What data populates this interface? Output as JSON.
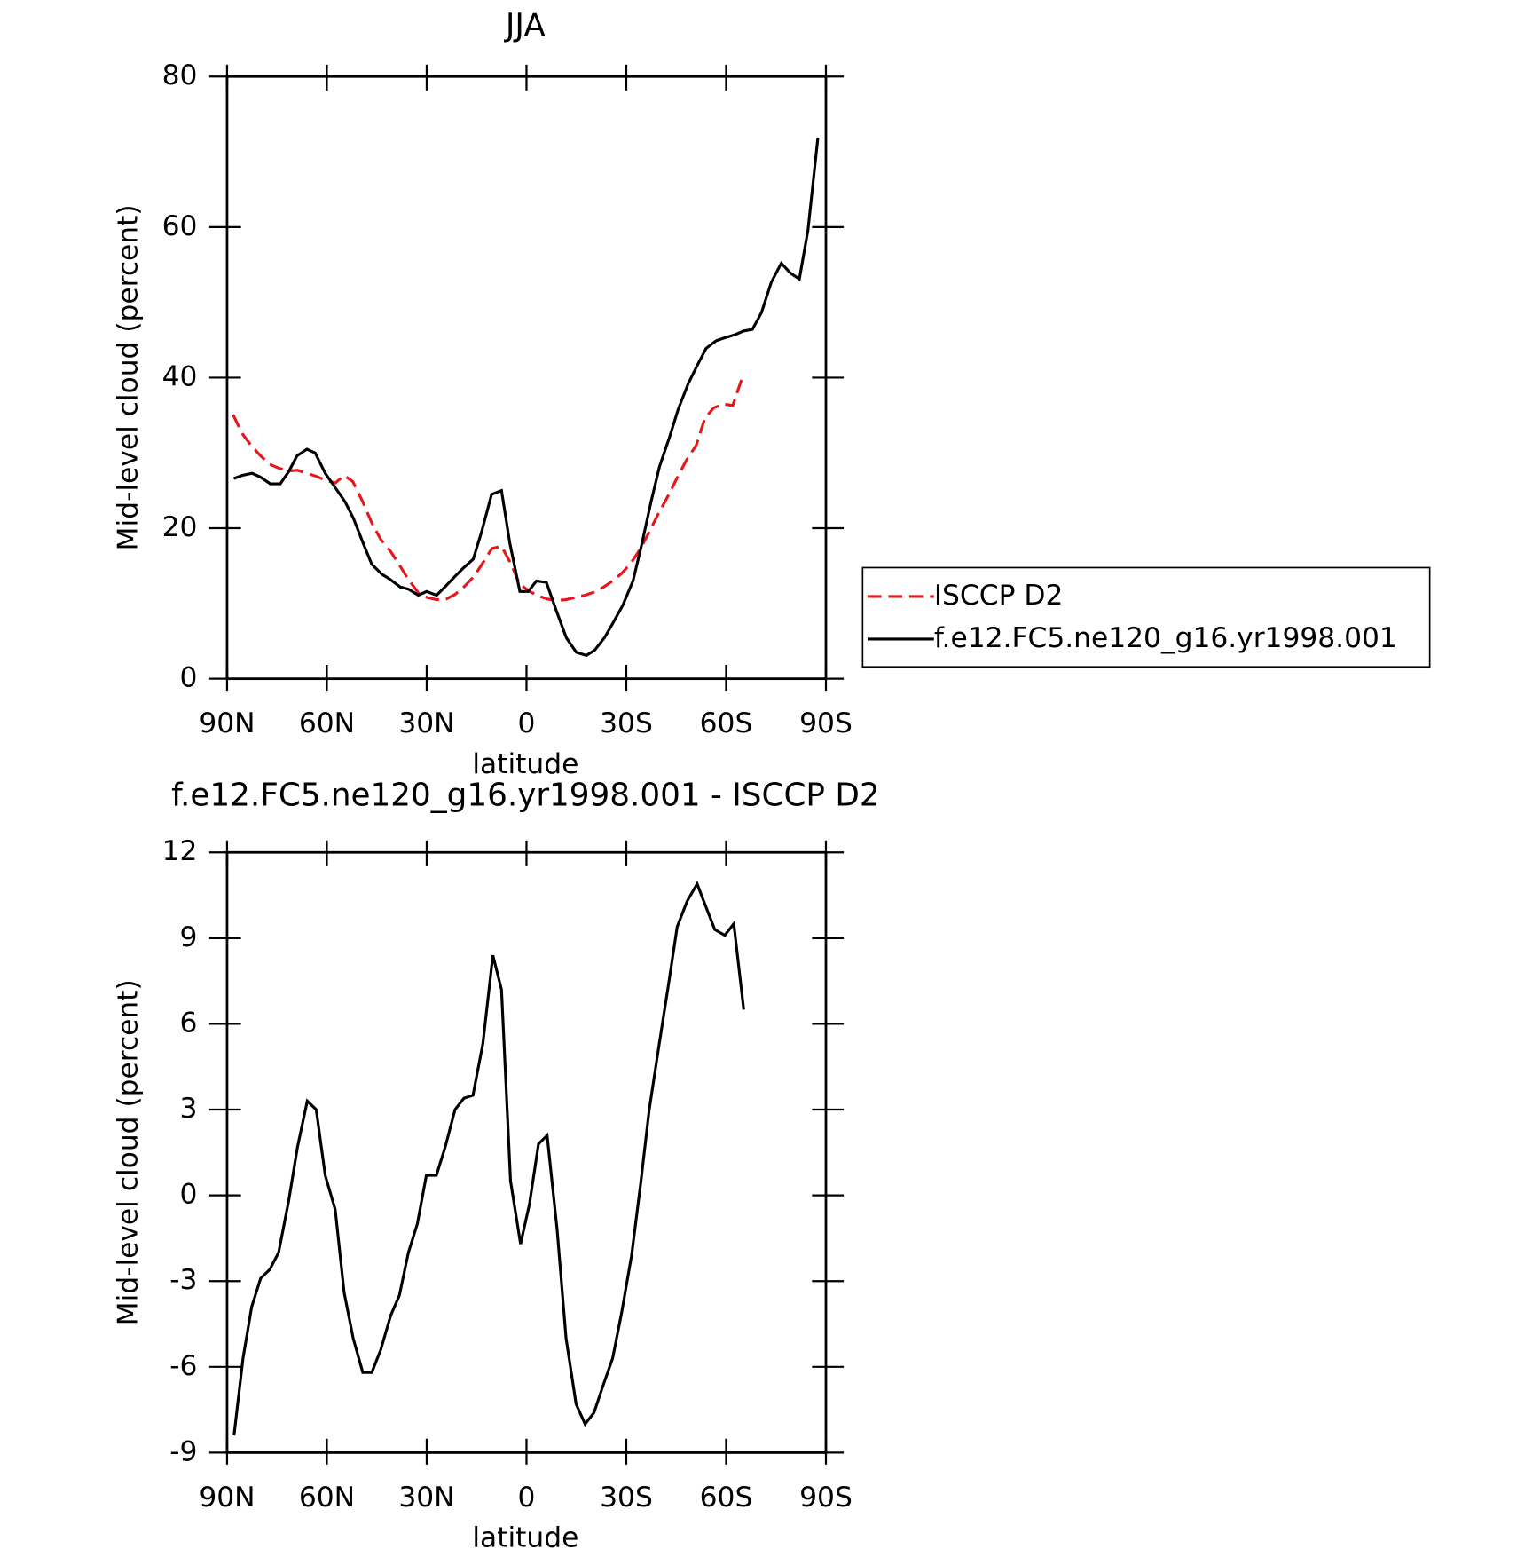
{
  "chart_data": [
    {
      "type": "line",
      "title": "JJA",
      "xlabel": "latitude",
      "ylabel": "Mid-level cloud (percent)",
      "xlim": [
        90,
        -90
      ],
      "xticks": [
        {
          "value": 90,
          "label": "90N"
        },
        {
          "value": 60,
          "label": "60N"
        },
        {
          "value": 30,
          "label": "30N"
        },
        0,
        {
          "value": -30,
          "label": "30S"
        },
        {
          "value": -60,
          "label": "60S"
        },
        {
          "value": -90,
          "label": "90S"
        }
      ],
      "ylim": [
        0,
        80
      ],
      "yticks": [
        0,
        20,
        40,
        60,
        80
      ],
      "legend": "outside right",
      "series": [
        {
          "name": "ISCCP D2",
          "color": "#e8151b",
          "dash": true,
          "x": [
            88.2,
            85.5,
            82.8,
            79.9,
            77.2,
            74.5,
            71.5,
            68.8,
            66,
            63.2,
            60.5,
            57.5,
            54.8,
            52.2,
            49.2,
            46.5,
            43.8,
            40.8,
            38.2,
            35.5,
            32.5,
            29.8,
            27.1,
            24.1,
            21.5,
            18.8,
            15.8,
            13.1,
            10.4,
            7.5,
            4.8,
            2.1,
            -0.9,
            -3.6,
            -6.2,
            -9.2,
            -11.9,
            -14.6,
            -17.6,
            -20.3,
            -22.9,
            -25.9,
            -28.6,
            -31.3,
            -34.3,
            -36.9,
            -39.6,
            -42.6,
            -45.3,
            -48,
            -51,
            -53.6,
            -56.3,
            -59.3,
            -62,
            -65
          ],
          "values": [
            35.1,
            32.6,
            31.0,
            29.6,
            28.5,
            28.0,
            27.6,
            27.7,
            27.3,
            26.9,
            26.4,
            26.0,
            27.0,
            26.2,
            23.5,
            20.7,
            18.5,
            16.9,
            15.1,
            13.2,
            11.4,
            10.8,
            10.5,
            10.6,
            11.2,
            12.2,
            13.6,
            15.4,
            17.3,
            17.6,
            15.4,
            12.6,
            11.6,
            11.0,
            10.6,
            10.4,
            10.5,
            10.8,
            11.1,
            11.5,
            12.1,
            13.0,
            14.0,
            15.3,
            17.3,
            19.5,
            21.9,
            24.3,
            26.7,
            29.0,
            31.0,
            34.6,
            36.0,
            36.5,
            36.3,
            40.2
          ]
        },
        {
          "name": "f.e12.FC5.ne120_g16.yr1998.001",
          "color": "#000000",
          "dash": false,
          "x": [
            88,
            85.5,
            82.5,
            80,
            77,
            74,
            71.5,
            69,
            66,
            63.5,
            60.5,
            57.5,
            54.5,
            52,
            49,
            46.5,
            43.5,
            41,
            38,
            35.5,
            32.5,
            30,
            27,
            24.5,
            21.5,
            19,
            16,
            13.5,
            10.5,
            7.5,
            5,
            2,
            -0.5,
            -3,
            -6,
            -9,
            -12,
            -15,
            -18,
            -20.5,
            -23.5,
            -26,
            -29,
            -32,
            -34.5,
            -37.5,
            -40,
            -43,
            -45.6,
            -48.6,
            -51.3,
            -54,
            -57,
            -59.6,
            -62.6,
            -65.2,
            -67.9,
            -70.6,
            -73.6,
            -76.6,
            -79.3,
            -82,
            -84.6,
            -87.6
          ],
          "values": [
            26.6,
            27.0,
            27.3,
            26.8,
            25.9,
            25.9,
            27.5,
            29.6,
            30.5,
            30.0,
            27.3,
            25.4,
            23.5,
            21.3,
            17.9,
            15.2,
            13.9,
            13.2,
            12.2,
            11.9,
            11.1,
            11.6,
            11.1,
            12.2,
            13.6,
            14.7,
            15.9,
            19.5,
            24.5,
            25.0,
            18.0,
            11.6,
            11.6,
            13.0,
            12.8,
            9.0,
            5.4,
            3.5,
            3.1,
            3.8,
            5.5,
            7.4,
            9.8,
            13.0,
            17.6,
            23.6,
            28.2,
            32.1,
            35.8,
            39.2,
            41.6,
            43.9,
            44.9,
            45.3,
            45.7,
            46.2,
            46.4,
            48.6,
            52.7,
            55.2,
            53.9,
            53.1,
            59.6,
            71.9
          ]
        }
      ]
    },
    {
      "type": "line",
      "title": "f.e12.FC5.ne120_g16.yr1998.001 - ISCCP D2",
      "xlabel": "latitude",
      "ylabel": "Mid-level cloud (percent)",
      "xlim": [
        90,
        -90
      ],
      "xticks": [
        {
          "value": 90,
          "label": "90N"
        },
        {
          "value": 60,
          "label": "60N"
        },
        {
          "value": 30,
          "label": "30N"
        },
        0,
        {
          "value": -30,
          "label": "30S"
        },
        {
          "value": -60,
          "label": "60S"
        },
        {
          "value": -90,
          "label": "90S"
        }
      ],
      "ylim": [
        -9,
        12
      ],
      "yticks": [
        -9,
        -6,
        -3,
        0,
        3,
        6,
        9,
        12
      ],
      "series": [
        {
          "color": "#000000",
          "dash": false,
          "x": [
            87.9,
            85.2,
            82.6,
            79.9,
            77.2,
            74.5,
            71.5,
            68.8,
            65.9,
            63.2,
            60.5,
            57.5,
            54.8,
            52.1,
            49.2,
            46.5,
            43.8,
            40.8,
            38.2,
            35.5,
            32.8,
            30.1,
            27.1,
            24.4,
            21.5,
            18.8,
            16.1,
            13.1,
            10.1,
            7.5,
            4.8,
            1.8,
            -0.9,
            -3.6,
            -6.2,
            -9.2,
            -11.9,
            -14.9,
            -17.6,
            -20.3,
            -22.9,
            -25.9,
            -28.6,
            -31.6,
            -34.3,
            -36.9,
            -39.9,
            -42.6,
            -45.3,
            -48.3,
            -51.3,
            -53.9,
            -56.6,
            -59.6,
            -62.3,
            -65.3
          ],
          "values": [
            -8.4,
            -5.7,
            -3.9,
            -2.9,
            -2.6,
            -2.0,
            -0.2,
            1.7,
            3.3,
            3.0,
            0.7,
            -0.5,
            -3.4,
            -5.0,
            -6.2,
            -6.2,
            -5.4,
            -4.2,
            -3.5,
            -2.0,
            -1.0,
            0.7,
            0.7,
            1.7,
            3.0,
            3.4,
            3.5,
            5.3,
            8.4,
            7.2,
            0.5,
            -1.7,
            -0.3,
            1.8,
            2.1,
            -1.2,
            -5.0,
            -7.3,
            -8.0,
            -7.6,
            -6.7,
            -5.7,
            -4.1,
            -2.1,
            0.4,
            3.0,
            5.3,
            7.3,
            9.4,
            10.3,
            10.9,
            10.1,
            9.3,
            9.1,
            9.5,
            6.5
          ]
        }
      ]
    }
  ]
}
